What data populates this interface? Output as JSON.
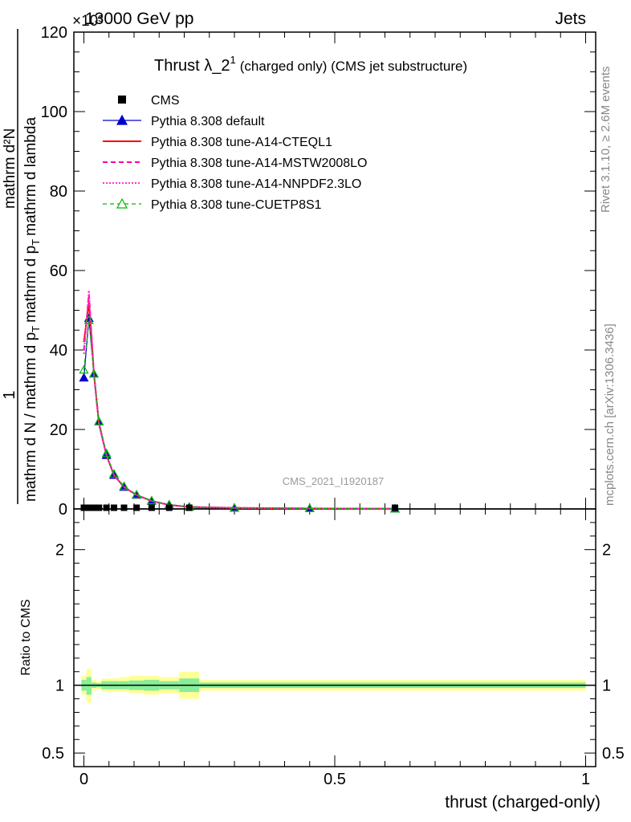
{
  "header": {
    "left": "13000 GeV pp",
    "right": "Jets",
    "exponent": "×10³"
  },
  "title": {
    "main": "Thrust λ_2",
    "superscript": "1",
    "rest": "(charged only) (CMS jet substructure)"
  },
  "side_labels": {
    "rivet": "Rivet 3.1.10, ≥ 2.6M events",
    "mcplots": "mcplots.cern.ch [arXiv:1306.3436]"
  },
  "watermark": "CMS_2021_I1920187",
  "ylabel_top": {
    "numerator_one": "1",
    "denominator": "mathrm d N / mathrm d p_T mathrm d p_T mathrm d lambda",
    "numerator": "mathrm d²N",
    "numerator_part1": "mathrm d",
    "numerator_part2": "N",
    "denominator_part1": "mathrm d N / mathrm d p",
    "denominator_part2": "mathrm d p",
    "denominator_part3": "mathrm d lambda",
    "subscript_T": "T",
    "numerator_full": "mathrm d²N"
  },
  "ylabel_bottom": "Ratio to CMS",
  "xlabel": "thrust (charged-only)",
  "legend": [
    {
      "label": "CMS",
      "color": "#000000",
      "style": "square"
    },
    {
      "label": "Pythia 8.308 default",
      "color": "#0000cc",
      "style": "line-triangle"
    },
    {
      "label": "Pythia 8.308 tune-A14-CTEQL1",
      "color": "#ff0000",
      "style": "solid"
    },
    {
      "label": "Pythia 8.308 tune-A14-MSTW2008LO",
      "color": "#ff00aa",
      "style": "dashed"
    },
    {
      "label": "Pythia 8.308 tune-A14-NNPDF2.3LO",
      "color": "#ff33cc",
      "style": "dotted"
    },
    {
      "label": "Pythia 8.308 tune-CUETP8S1",
      "color": "#00bb00",
      "style": "dashed-open-triangle"
    }
  ],
  "chart_data": [
    {
      "type": "line",
      "xlim": [
        -0.02,
        1.02
      ],
      "ylim": [
        0,
        120
      ],
      "y_scale_factor": "×10³",
      "x_ticks": [
        "0",
        "0.5",
        "1"
      ],
      "y_ticks": [
        "0",
        "20",
        "40",
        "60",
        "80",
        "100",
        "120"
      ],
      "grid": false,
      "cms": {
        "x": [
          0.0,
          0.01,
          0.02,
          0.03,
          0.045,
          0.06,
          0.08,
          0.105,
          0.135,
          0.17,
          0.21,
          0.62
        ],
        "y": [
          0.3,
          0.3,
          0.3,
          0.3,
          0.3,
          0.3,
          0.3,
          0.3,
          0.3,
          0.3,
          0.3,
          0.3
        ]
      },
      "series": [
        {
          "name": "Pythia 8.308 default",
          "color": "#0000cc",
          "x": [
            0.0,
            0.01,
            0.02,
            0.03,
            0.045,
            0.06,
            0.08,
            0.105,
            0.135,
            0.17,
            0.21,
            0.3,
            0.45,
            0.62
          ],
          "y": [
            33,
            48,
            34,
            22,
            13.5,
            8.5,
            5.5,
            3.5,
            2.0,
            1.0,
            0.5,
            0.25,
            0.12,
            0.05
          ]
        },
        {
          "name": "Pythia 8.308 tune-A14-CTEQL1",
          "color": "#ff0000",
          "x": [
            0.0,
            0.01,
            0.02,
            0.03,
            0.045,
            0.06,
            0.08,
            0.105,
            0.135,
            0.17,
            0.21,
            0.3,
            0.45,
            0.62
          ],
          "y": [
            42,
            52,
            34,
            21.5,
            13.5,
            8.5,
            5.5,
            3.5,
            2.0,
            1.0,
            0.5,
            0.25,
            0.12,
            0.05
          ]
        },
        {
          "name": "Pythia 8.308 tune-A14-MSTW2008LO",
          "color": "#ff00aa",
          "x": [
            0.0,
            0.01,
            0.02,
            0.03,
            0.045,
            0.06,
            0.08,
            0.105,
            0.135,
            0.17,
            0.21,
            0.3,
            0.45,
            0.62
          ],
          "y": [
            40,
            54,
            34,
            21.5,
            13.5,
            8.5,
            5.5,
            3.5,
            2.0,
            1.0,
            0.5,
            0.25,
            0.12,
            0.05
          ]
        },
        {
          "name": "Pythia 8.308 tune-A14-NNPDF2.3LO",
          "color": "#ff33cc",
          "x": [
            0.0,
            0.01,
            0.02,
            0.03,
            0.045,
            0.06,
            0.08,
            0.105,
            0.135,
            0.17,
            0.21,
            0.3,
            0.45,
            0.62
          ],
          "y": [
            39,
            55,
            34,
            21.5,
            13.5,
            8.5,
            5.5,
            3.5,
            2.0,
            1.0,
            0.5,
            0.25,
            0.12,
            0.05
          ]
        },
        {
          "name": "Pythia 8.308 tune-CUETP8S1",
          "color": "#00bb00",
          "x": [
            0.0,
            0.01,
            0.02,
            0.03,
            0.045,
            0.06,
            0.08,
            0.105,
            0.135,
            0.17,
            0.21,
            0.3,
            0.45,
            0.62
          ],
          "y": [
            35,
            47.5,
            34,
            22,
            14,
            8.8,
            5.7,
            3.6,
            2.1,
            1.1,
            0.5,
            0.25,
            0.12,
            0.05
          ]
        }
      ]
    },
    {
      "type": "area",
      "xlim": [
        -0.02,
        1.02
      ],
      "ylim": [
        0.4,
        2.3
      ],
      "y_ticks": [
        "0.5",
        "1",
        "2"
      ],
      "x_ticks": [
        "0",
        "0.5",
        "1"
      ],
      "grid": false,
      "reference_line": 1,
      "bands": {
        "edges": [
          -0.005,
          0.005,
          0.015,
          0.025,
          0.035,
          0.05,
          0.07,
          0.09,
          0.12,
          0.15,
          0.19,
          0.23,
          1.0
        ],
        "yellow_lo": [
          0.93,
          0.87,
          0.96,
          0.97,
          0.95,
          0.95,
          0.95,
          0.94,
          0.93,
          0.94,
          0.9,
          0.96
        ],
        "yellow_hi": [
          1.07,
          1.12,
          1.04,
          1.03,
          1.05,
          1.05,
          1.06,
          1.07,
          1.07,
          1.06,
          1.1,
          1.04
        ],
        "green_lo": [
          0.96,
          0.93,
          0.98,
          0.985,
          0.97,
          0.97,
          0.97,
          0.965,
          0.96,
          0.97,
          0.95,
          0.98
        ],
        "green_hi": [
          1.04,
          1.06,
          1.02,
          1.015,
          1.03,
          1.03,
          1.03,
          1.035,
          1.04,
          1.03,
          1.05,
          1.02
        ]
      }
    }
  ]
}
